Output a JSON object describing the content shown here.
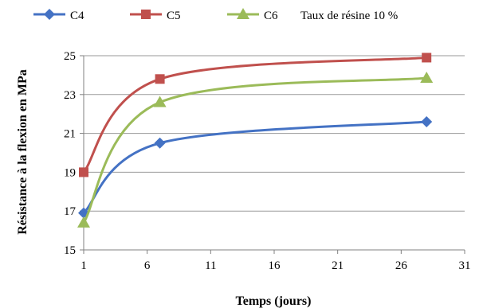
{
  "chart_data": {
    "type": "line",
    "title": "",
    "note": "Taux de résine 10 %",
    "xlabel": "Temps (jours)",
    "ylabel": "Résistance à la flexion en MPa",
    "xlim": [
      1,
      31
    ],
    "ylim": [
      15,
      25
    ],
    "xticks": [
      1,
      6,
      11,
      16,
      21,
      26,
      31
    ],
    "yticks": [
      15,
      17,
      19,
      21,
      23,
      25
    ],
    "grid": "horizontal",
    "legend_position": "top",
    "x": [
      1,
      7,
      28
    ],
    "series": [
      {
        "name": "C4",
        "values": [
          16.9,
          20.5,
          21.6
        ],
        "color": "#4472C4",
        "marker": "diamond"
      },
      {
        "name": "C5",
        "values": [
          19.0,
          23.8,
          24.9
        ],
        "color": "#C0504D",
        "marker": "square"
      },
      {
        "name": "C6",
        "values": [
          16.4,
          22.6,
          23.85
        ],
        "color": "#9BBB59",
        "marker": "triangle"
      }
    ]
  }
}
